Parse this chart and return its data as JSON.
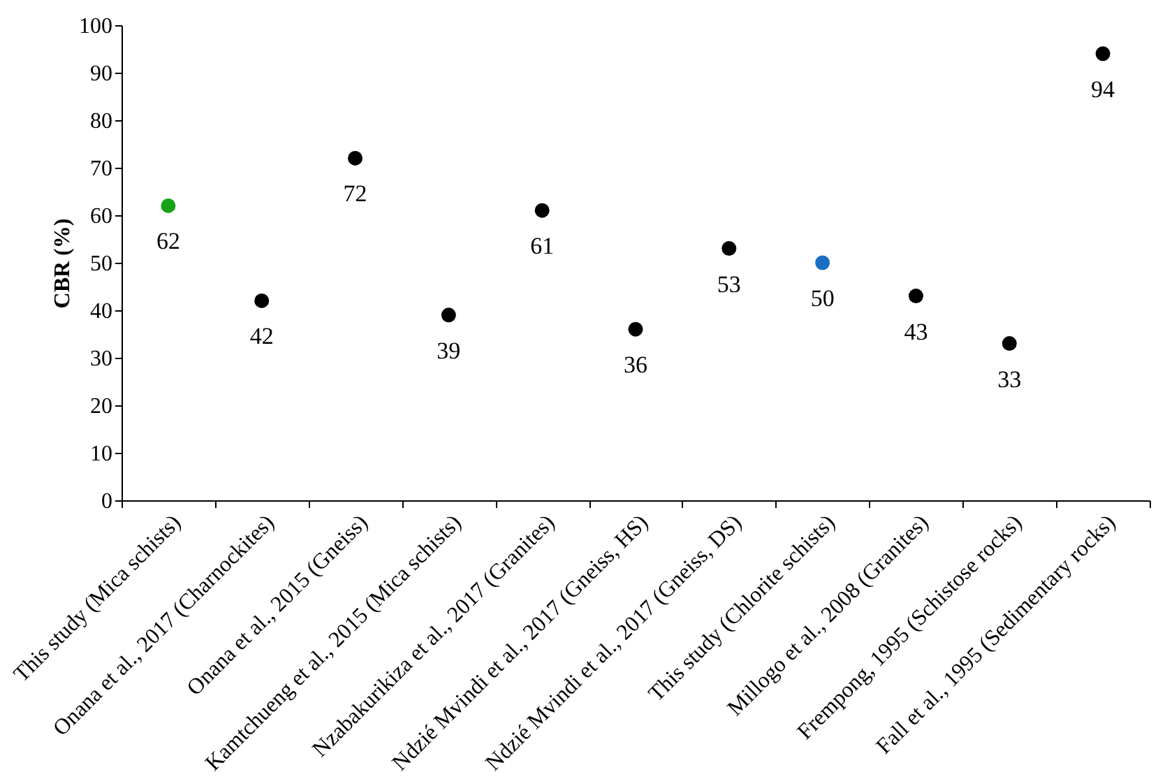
{
  "chart_data": {
    "type": "scatter",
    "ylabel": "CBR (%)",
    "categories": [
      "This study (Mica schists)",
      "Onana et al., 2017 (Charnockites)",
      "Onana et al., 2015 (Gneiss)",
      "Kamtchueng et al., 2015 (Mica schists)",
      "Nzabakurikiza et al., 2017 (Granites)",
      "Ndzié Mvindi et al., 2017 (Gneiss, HS)",
      "Ndzié Mvindi et al., 2017 (Gneiss, DS)",
      "This study (Chlorite schists)",
      "Millogo et al., 2008 (Granites)",
      "Frempong, 1995 (Schistose rocks)",
      "Fall et al., 1995 (Sedimentary rocks)"
    ],
    "values": [
      62,
      42,
      72,
      39,
      61,
      36,
      53,
      50,
      43,
      33,
      94
    ],
    "colors": [
      "#17a317",
      "#000000",
      "#000000",
      "#000000",
      "#000000",
      "#000000",
      "#000000",
      "#1a6fc4",
      "#000000",
      "#000000",
      "#000000"
    ],
    "ylim": [
      0,
      100
    ],
    "yticks": [
      0,
      10,
      20,
      30,
      40,
      50,
      60,
      70,
      80,
      90,
      100
    ],
    "data_labels": true,
    "grid": false
  }
}
